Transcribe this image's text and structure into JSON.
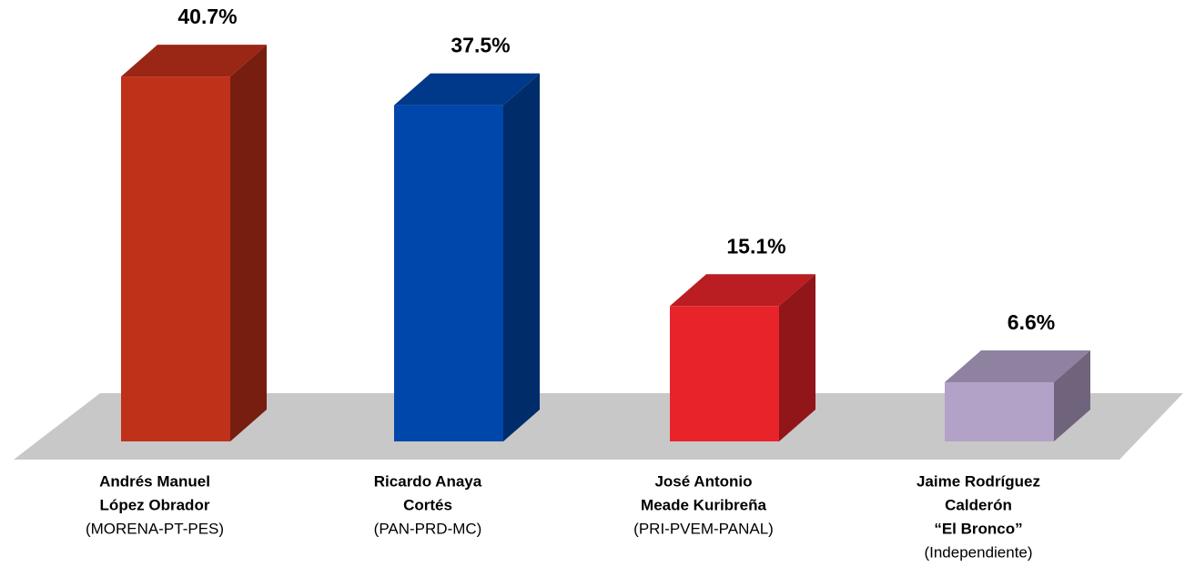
{
  "chart_data": {
    "type": "bar3d",
    "categories": [
      {
        "lines": [
          "Andrés Manuel",
          "López Obrador"
        ],
        "party": "(MORENA-PT-PES)"
      },
      {
        "lines": [
          "Ricardo Anaya",
          "Cortés"
        ],
        "party": "(PAN-PRD-MC)"
      },
      {
        "lines": [
          "José Antonio",
          "Meade Kuribreña"
        ],
        "party": "(PRI-PVEM-PANAL)"
      },
      {
        "lines": [
          "Jaime Rodríguez",
          "Calderón",
          "“El Bronco”"
        ],
        "party": "(Independiente)"
      }
    ],
    "values": [
      40.7,
      37.5,
      15.1,
      6.6
    ],
    "value_labels": [
      "40.7%",
      "37.5%",
      "15.1%",
      "6.6%"
    ],
    "colors": [
      "#c0311a",
      "#0047ab",
      "#e8242a",
      "#b3a2c8"
    ]
  }
}
